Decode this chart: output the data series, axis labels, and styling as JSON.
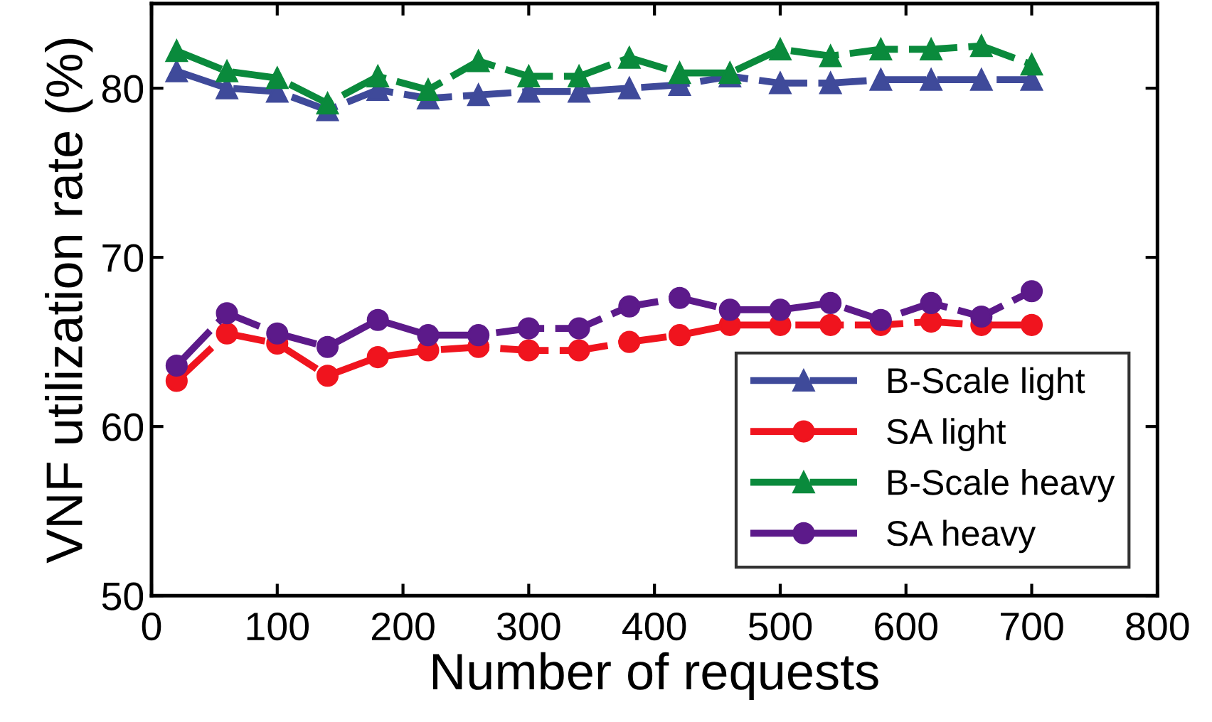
{
  "chart_data": {
    "type": "line",
    "xlabel": "Number of requests",
    "ylabel": "VNF utilization rate (%)",
    "x": [
      20,
      60,
      100,
      140,
      180,
      220,
      260,
      300,
      340,
      380,
      420,
      460,
      500,
      540,
      580,
      620,
      660,
      700
    ],
    "xlim": [
      0,
      800
    ],
    "xticks": [
      0,
      100,
      200,
      300,
      400,
      500,
      600,
      700,
      800
    ],
    "ylim": [
      50,
      85
    ],
    "yticks": [
      50,
      60,
      70,
      80
    ],
    "grid": false,
    "legend": "bottom right",
    "line_style": "dashed",
    "series": [
      {
        "name": "B-Scale light",
        "color": "#3f4a9a",
        "marker": "triangle",
        "values": [
          81.0,
          80.0,
          79.8,
          78.7,
          79.9,
          79.4,
          79.6,
          79.8,
          79.8,
          80.0,
          80.2,
          80.7,
          80.3,
          80.3,
          80.5,
          80.5,
          80.5,
          80.5
        ]
      },
      {
        "name": "SA light",
        "color": "#f0141e",
        "marker": "circle",
        "values": [
          62.7,
          65.5,
          64.9,
          63.0,
          64.1,
          64.5,
          64.7,
          64.5,
          64.5,
          65.0,
          65.4,
          66.0,
          66.0,
          66.0,
          66.0,
          66.2,
          66.0,
          66.0
        ]
      },
      {
        "name": "B-Scale heavy",
        "color": "#0a8a3c",
        "marker": "triangle",
        "values": [
          82.2,
          81.0,
          80.6,
          79.1,
          80.7,
          79.9,
          81.6,
          80.7,
          80.7,
          81.8,
          80.9,
          80.9,
          82.3,
          81.9,
          82.3,
          82.3,
          82.5,
          81.4
        ]
      },
      {
        "name": "SA heavy",
        "color": "#5c1a8a",
        "marker": "circle",
        "values": [
          63.6,
          66.7,
          65.5,
          64.7,
          66.3,
          65.4,
          65.4,
          65.8,
          65.8,
          67.1,
          67.6,
          66.9,
          66.9,
          67.3,
          66.3,
          67.3,
          66.5,
          68.0
        ]
      }
    ]
  }
}
